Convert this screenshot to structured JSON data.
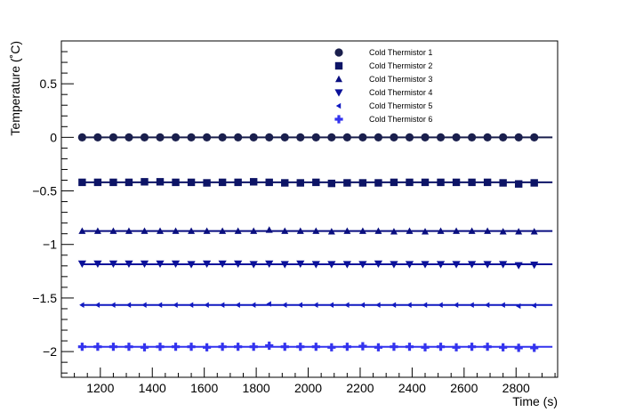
{
  "chart_data": {
    "type": "scatter",
    "title": "",
    "xlabel": "Time (s)",
    "ylabel": "Temperature (˚C)",
    "xlim": [
      1050,
      2960
    ],
    "ylim": [
      -2.24,
      0.9
    ],
    "x_ticks": [
      1200,
      1400,
      1600,
      1800,
      2000,
      2200,
      2400,
      2600,
      2800
    ],
    "y_ticks": [
      0.5,
      0,
      -0.5,
      -1,
      -1.5,
      -2
    ],
    "y_tick_labels": [
      "0.5",
      "0",
      "−0.5",
      "−1",
      "−1.5",
      "−2"
    ],
    "grid": false,
    "legend_position": "top-right",
    "fit_lines": {
      "x_range": [
        1130,
        2940
      ]
    },
    "x": [
      1130,
      1190,
      1250,
      1310,
      1370,
      1430,
      1490,
      1550,
      1610,
      1670,
      1730,
      1790,
      1850,
      1910,
      1970,
      2030,
      2090,
      2150,
      2210,
      2270,
      2330,
      2390,
      2450,
      2510,
      2570,
      2630,
      2690,
      2750,
      2810,
      2870
    ],
    "series": [
      {
        "name": "Cold Thermistor 1",
        "marker": "circle",
        "color": "#1a1f4d",
        "fit": 0.0,
        "values": [
          0,
          0,
          0,
          0,
          0,
          0,
          0,
          0,
          0,
          0,
          0,
          0,
          0,
          0,
          0,
          0,
          0,
          0,
          0,
          0,
          0,
          0,
          0,
          0,
          0,
          0,
          0,
          0,
          0,
          0
        ]
      },
      {
        "name": "Cold Thermistor 2",
        "marker": "square",
        "color": "#0d1466",
        "fit": -0.42,
        "values": [
          -0.42,
          -0.42,
          -0.42,
          -0.42,
          -0.415,
          -0.415,
          -0.42,
          -0.42,
          -0.425,
          -0.42,
          -0.42,
          -0.415,
          -0.42,
          -0.425,
          -0.425,
          -0.42,
          -0.43,
          -0.425,
          -0.425,
          -0.425,
          -0.42,
          -0.42,
          -0.42,
          -0.42,
          -0.42,
          -0.42,
          -0.42,
          -0.425,
          -0.435,
          -0.425
        ]
      },
      {
        "name": "Cold Thermistor 3",
        "marker": "triangle-up",
        "color": "#0a0f80",
        "fit": -0.875,
        "values": [
          -0.875,
          -0.875,
          -0.875,
          -0.875,
          -0.875,
          -0.875,
          -0.875,
          -0.875,
          -0.875,
          -0.875,
          -0.875,
          -0.875,
          -0.865,
          -0.875,
          -0.875,
          -0.875,
          -0.88,
          -0.875,
          -0.875,
          -0.875,
          -0.88,
          -0.875,
          -0.88,
          -0.875,
          -0.875,
          -0.875,
          -0.875,
          -0.88,
          -0.88,
          -0.88
        ]
      },
      {
        "name": "Cold Thermistor 4",
        "marker": "triangle-down",
        "color": "#0a1099",
        "fit": -1.185,
        "values": [
          -1.18,
          -1.18,
          -1.18,
          -1.18,
          -1.18,
          -1.18,
          -1.18,
          -1.185,
          -1.18,
          -1.18,
          -1.18,
          -1.185,
          -1.18,
          -1.185,
          -1.18,
          -1.185,
          -1.185,
          -1.185,
          -1.185,
          -1.18,
          -1.185,
          -1.185,
          -1.185,
          -1.185,
          -1.185,
          -1.185,
          -1.185,
          -1.185,
          -1.195,
          -1.19
        ]
      },
      {
        "name": "Cold Thermistor 5",
        "marker": "triangle-left",
        "color": "#1019c0",
        "fit": -1.565,
        "values": [
          -1.565,
          -1.565,
          -1.565,
          -1.565,
          -1.565,
          -1.565,
          -1.565,
          -1.565,
          -1.565,
          -1.565,
          -1.565,
          -1.565,
          -1.555,
          -1.565,
          -1.565,
          -1.565,
          -1.565,
          -1.565,
          -1.565,
          -1.565,
          -1.565,
          -1.565,
          -1.565,
          -1.565,
          -1.565,
          -1.565,
          -1.565,
          -1.565,
          -1.575,
          -1.57
        ]
      },
      {
        "name": "Cold Thermistor 6",
        "marker": "cross",
        "color": "#3333ee",
        "fit": -1.955,
        "values": [
          -1.955,
          -1.955,
          -1.955,
          -1.955,
          -1.96,
          -1.955,
          -1.955,
          -1.955,
          -1.96,
          -1.955,
          -1.955,
          -1.955,
          -1.945,
          -1.955,
          -1.955,
          -1.955,
          -1.96,
          -1.955,
          -1.95,
          -1.96,
          -1.955,
          -1.955,
          -1.96,
          -1.955,
          -1.96,
          -1.955,
          -1.955,
          -1.96,
          -1.965,
          -1.965
        ]
      }
    ]
  }
}
